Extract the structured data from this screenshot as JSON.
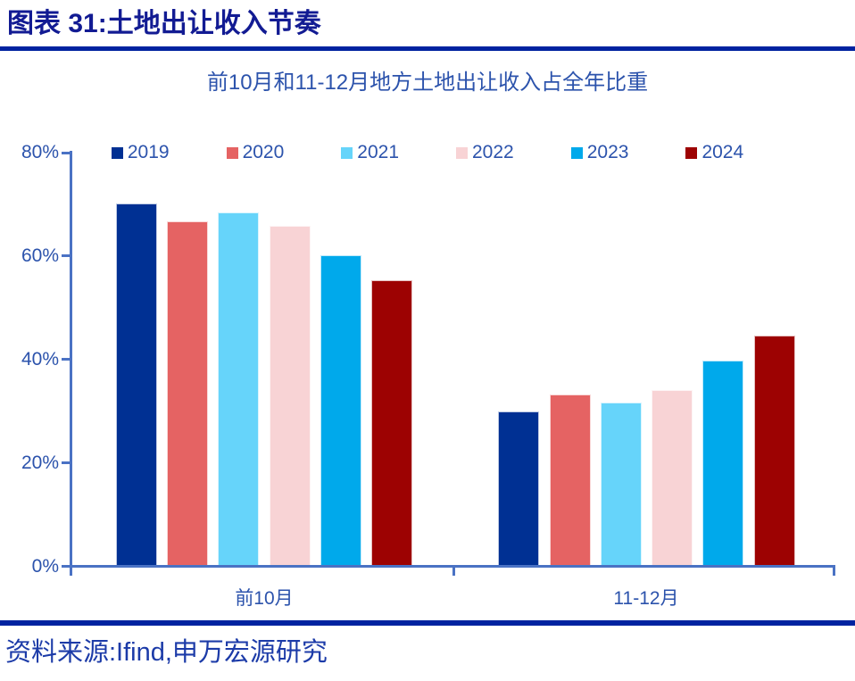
{
  "figure": {
    "label": "图表 31:土地出让收入节奏",
    "source": "资料来源:Ifind,申万宏源研究"
  },
  "colors": {
    "header_navy": "#121B93",
    "rule_navy": "#0023A0",
    "text_blue": "#2C53AC",
    "source_blue": "#1C3BA8",
    "axis_blue": "#4A72C4"
  },
  "chart_data": {
    "type": "bar",
    "title": "前10月和11-12月地方土地出让收入占全年比重",
    "categories": [
      "前10月",
      "11-12月"
    ],
    "series": [
      {
        "name": "2019",
        "color": "#003093",
        "values": [
          70.1,
          29.9
        ]
      },
      {
        "name": "2020",
        "color": "#E56363",
        "values": [
          66.7,
          33.3
        ]
      },
      {
        "name": "2021",
        "color": "#66D4FA",
        "values": [
          68.4,
          31.6
        ]
      },
      {
        "name": "2022",
        "color": "#F8D3D5",
        "values": [
          65.9,
          34.1
        ]
      },
      {
        "name": "2023",
        "color": "#00A9EB",
        "values": [
          60.2,
          39.8
        ]
      },
      {
        "name": "2024",
        "color": "#9D0202",
        "values": [
          55.4,
          44.6
        ]
      }
    ],
    "ylabel": "",
    "ylim": [
      0,
      80
    ],
    "ytick_step": 20,
    "yticks": [
      "0%",
      "20%",
      "40%",
      "60%",
      "80%"
    ],
    "legend_position": "top",
    "grid": false
  }
}
